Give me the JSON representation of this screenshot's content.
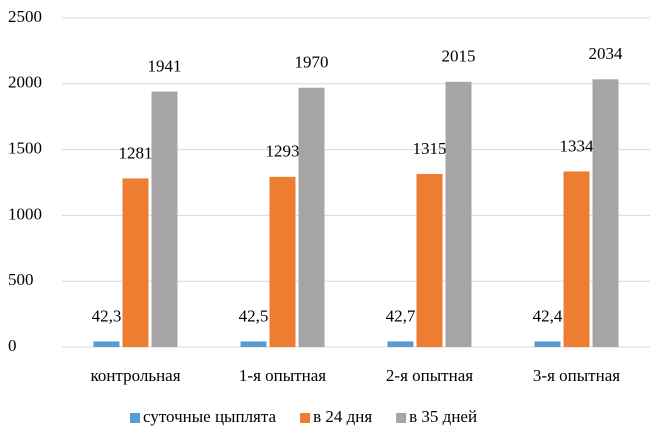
{
  "chart_data": {
    "type": "bar",
    "categories": [
      "контрольная",
      "1-я опытная",
      "2-я опытная",
      "3-я опытная"
    ],
    "series": [
      {
        "name": "суточные цыплята",
        "color": "#5b9bd5",
        "values": [
          42.3,
          42.5,
          42.7,
          42.4
        ],
        "value_labels": [
          "42,3",
          "42,5",
          "42,7",
          "42,4"
        ]
      },
      {
        "name": "в 24 дня",
        "color": "#ed7d31",
        "values": [
          1281,
          1293,
          1315,
          1334
        ]
      },
      {
        "name": "в 35 дней",
        "color": "#a5a5a5",
        "values": [
          1941,
          1970,
          2015,
          2034
        ]
      }
    ],
    "ylim": [
      0,
      2500
    ],
    "yticks": [
      0,
      500,
      1000,
      1500,
      2000,
      2500
    ],
    "grid": true,
    "legend": "bottom"
  }
}
